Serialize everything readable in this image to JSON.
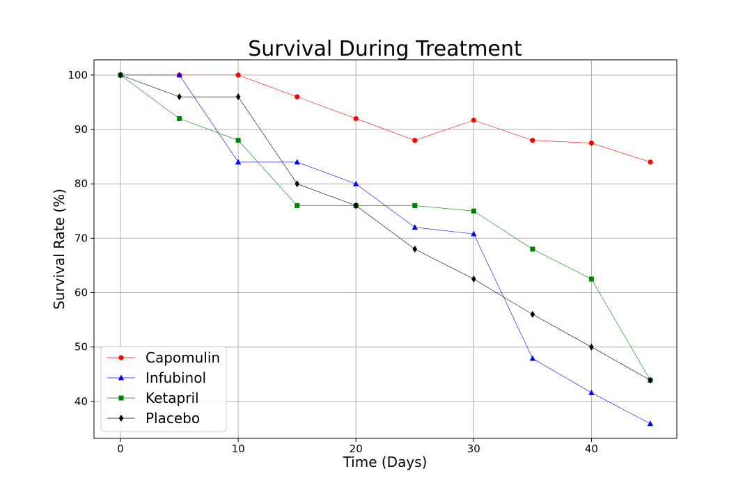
{
  "chart_data": {
    "type": "line",
    "title": "Survival During Treatment",
    "xlabel": "Time (Days)",
    "ylabel": "Survival Rate (%)",
    "x": [
      0,
      5,
      10,
      15,
      20,
      25,
      30,
      35,
      40,
      45
    ],
    "xlim": [
      -2.25,
      47.25
    ],
    "ylim": [
      33.2,
      102.8
    ],
    "xticks": [
      0,
      10,
      20,
      30,
      40
    ],
    "yticks": [
      40,
      50,
      60,
      70,
      80,
      90,
      100
    ],
    "grid": true,
    "legend_position": "lower-left",
    "series": [
      {
        "name": "Capomulin",
        "color": "#ff0000",
        "marker": "circle",
        "values": [
          100,
          100,
          100,
          96,
          92,
          88,
          91.7,
          88,
          87.5,
          84
        ]
      },
      {
        "name": "Infubinol",
        "color": "#0000ff",
        "marker": "triangle",
        "values": [
          100,
          100,
          84,
          84,
          80,
          72,
          70.8,
          47.9,
          41.6,
          35.9
        ]
      },
      {
        "name": "Ketapril",
        "color": "#008000",
        "marker": "square",
        "values": [
          100,
          92,
          88,
          76,
          76,
          76,
          75,
          68,
          62.5,
          43.9
        ]
      },
      {
        "name": "Placebo",
        "color": "#000000",
        "marker": "diamond",
        "values": [
          100,
          96,
          96,
          80,
          76,
          68,
          62.5,
          56,
          50,
          43.9
        ]
      }
    ]
  }
}
